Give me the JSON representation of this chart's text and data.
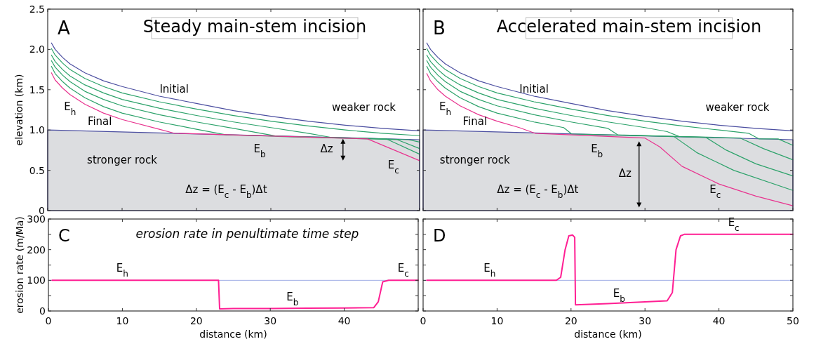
{
  "chart_data": [
    {
      "type": "line",
      "title": "Steady main-stem incision",
      "ylabel": "elevation (km)",
      "xlim": [
        0,
        50
      ],
      "ylim": [
        0,
        2.5
      ],
      "xticks": [
        {
          "value": 0,
          "label": null
        },
        {
          "value": 10,
          "label": null
        },
        {
          "value": 20,
          "label": null
        },
        {
          "value": 30,
          "label": null
        },
        {
          "value": 40,
          "label": null
        },
        {
          "value": 50,
          "label": null
        }
      ],
      "yticks": [
        {
          "value": 0,
          "label": "0"
        },
        0.5,
        {
          "value": 1,
          "label": "1.0"
        },
        1.5,
        {
          "value": 2,
          "label": "2.0"
        },
        2.5
      ],
      "tick_labels": "y",
      "grid": false,
      "series": [
        {
          "color": "#4b4ea0",
          "x": [
            0.5,
            1,
            2,
            3,
            5,
            7.5,
            10,
            15,
            20,
            25,
            30,
            35,
            40,
            45,
            50
          ],
          "values": [
            2.08,
            2.0,
            1.9,
            1.82,
            1.71,
            1.61,
            1.54,
            1.42,
            1.33,
            1.24,
            1.17,
            1.11,
            1.06,
            1.02,
            0.99
          ]
        },
        {
          "color": "#2ca26a",
          "x": [
            0.5,
            1,
            2,
            3,
            5,
            7.5,
            10,
            15,
            20,
            25,
            30,
            35,
            40,
            45,
            50
          ],
          "values": [
            2.01,
            1.93,
            1.83,
            1.75,
            1.64,
            1.54,
            1.46,
            1.35,
            1.26,
            1.18,
            1.11,
            1.05,
            1.0,
            0.96,
            0.93
          ]
        },
        {
          "color": "#2ca26a",
          "x": [
            0.5,
            1,
            2,
            3,
            5,
            7.5,
            10,
            15,
            20,
            25,
            30,
            35,
            38,
            48.5,
            50
          ],
          "values": [
            1.93,
            1.85,
            1.75,
            1.67,
            1.56,
            1.46,
            1.38,
            1.27,
            1.18,
            1.1,
            1.03,
            0.96,
            0.91,
            0.88,
            0.85
          ]
        },
        {
          "color": "#2ca26a",
          "x": [
            0.5,
            1,
            2,
            3,
            5,
            7.5,
            10,
            15,
            20,
            25,
            31,
            47,
            50
          ],
          "values": [
            1.86,
            1.78,
            1.68,
            1.6,
            1.48,
            1.38,
            1.3,
            1.19,
            1.1,
            1.02,
            0.92,
            0.88,
            0.77
          ]
        },
        {
          "color": "#2ca26a",
          "x": [
            0.5,
            1,
            2,
            3,
            5,
            7.5,
            10,
            15,
            20,
            24,
            45.5,
            50
          ],
          "values": [
            1.79,
            1.7,
            1.6,
            1.52,
            1.4,
            1.29,
            1.21,
            1.1,
            1.01,
            0.94,
            0.89,
            0.7
          ]
        },
        {
          "color": "#e8338f",
          "x": [
            0.5,
            1,
            2,
            3,
            5,
            7.5,
            10,
            15,
            17,
            43,
            50
          ],
          "values": [
            1.71,
            1.62,
            1.52,
            1.44,
            1.32,
            1.21,
            1.13,
            1.01,
            0.96,
            0.89,
            0.62
          ]
        },
        {
          "type": "area",
          "color": "#dcdde0",
          "x": [
            0,
            50
          ],
          "values": [
            1.0,
            0.88
          ]
        }
      ],
      "annotations": [
        "A",
        "Initial",
        "Final",
        "E$_{h}$",
        "weaker rock",
        "stronger rock",
        "E$_{b}$",
        "Δz",
        "E$_{c}$",
        "Δz = (E$_{c}$ - E$_{b}$)Δt"
      ]
    },
    {
      "type": "line",
      "title": "Accelerated main-stem incision",
      "xlim": [
        0,
        50
      ],
      "ylim": [
        0,
        2.5
      ],
      "xticks": [
        {
          "value": 0,
          "label": null
        },
        {
          "value": 10,
          "label": null
        },
        {
          "value": 20,
          "label": null
        },
        {
          "value": 30,
          "label": null
        },
        {
          "value": 40,
          "label": null
        },
        {
          "value": 50,
          "label": null
        }
      ],
      "yticks": [
        {
          "value": 0,
          "label": null
        },
        {
          "value": 0.5,
          "label": null
        },
        {
          "value": 1.0,
          "label": null
        },
        {
          "value": 1.5,
          "label": null
        },
        {
          "value": 2.0,
          "label": null
        },
        {
          "value": 2.5,
          "label": null
        }
      ],
      "tick_labels": false,
      "grid": false,
      "series": [
        {
          "color": "#4b4ea0",
          "x": [
            0.5,
            1,
            2,
            3,
            5,
            7.5,
            10,
            15,
            20,
            25,
            30,
            35,
            40,
            45,
            50
          ],
          "values": [
            2.08,
            2.0,
            1.9,
            1.82,
            1.71,
            1.61,
            1.54,
            1.42,
            1.33,
            1.24,
            1.17,
            1.11,
            1.06,
            1.02,
            0.99
          ]
        },
        {
          "color": "#2ca26a",
          "x": [
            0.5,
            1,
            2,
            3,
            5,
            7.5,
            10,
            15,
            20,
            25,
            30,
            35,
            40,
            44,
            45.4,
            48,
            50
          ],
          "values": [
            2.01,
            1.93,
            1.83,
            1.75,
            1.64,
            1.54,
            1.46,
            1.35,
            1.26,
            1.18,
            1.11,
            1.05,
            1.0,
            0.96,
            0.89,
            0.89,
            0.81
          ]
        },
        {
          "color": "#2ca26a",
          "x": [
            0.5,
            1,
            2,
            3,
            5,
            7.5,
            10,
            15,
            20,
            25,
            30,
            33,
            34.6,
            42.9,
            46,
            50
          ],
          "values": [
            1.93,
            1.85,
            1.75,
            1.67,
            1.56,
            1.46,
            1.38,
            1.27,
            1.18,
            1.1,
            1.03,
            0.98,
            0.92,
            0.9,
            0.77,
            0.63
          ]
        },
        {
          "color": "#2ca26a",
          "x": [
            0.5,
            1,
            2,
            3,
            5,
            7.5,
            10,
            15,
            20,
            25,
            26.3,
            38.2,
            41,
            45,
            50
          ],
          "values": [
            1.86,
            1.78,
            1.68,
            1.6,
            1.48,
            1.38,
            1.3,
            1.19,
            1.1,
            1.02,
            0.94,
            0.91,
            0.75,
            0.58,
            0.43
          ]
        },
        {
          "color": "#2ca26a",
          "x": [
            0.5,
            1,
            2,
            3,
            5,
            7.5,
            10,
            15,
            19,
            20.1,
            33.9,
            37,
            42,
            50
          ],
          "values": [
            1.79,
            1.7,
            1.6,
            1.52,
            1.4,
            1.29,
            1.21,
            1.1,
            1.03,
            0.95,
            0.92,
            0.72,
            0.5,
            0.25
          ]
        },
        {
          "color": "#e8338f",
          "x": [
            0.5,
            1,
            2,
            3,
            5,
            7.5,
            10,
            13,
            15.1,
            30,
            32,
            35,
            40,
            45,
            50
          ],
          "values": [
            1.7,
            1.61,
            1.5,
            1.42,
            1.3,
            1.19,
            1.11,
            1.03,
            0.96,
            0.9,
            0.79,
            0.55,
            0.33,
            0.18,
            0.06
          ]
        },
        {
          "type": "area",
          "color": "#dcdde0",
          "x": [
            0,
            50
          ],
          "values": [
            1.0,
            0.88
          ]
        }
      ],
      "annotations": [
        "B",
        "Initial",
        "Final",
        "E$_{h}$",
        "weaker rock",
        "stronger rock",
        "E$_{b}$",
        "Δz",
        "E$_{c}$",
        "Δz = (E$_{c}$ - E$_{b}$)Δt"
      ]
    },
    {
      "type": "line",
      "title": "erosion rate in penultimate time step",
      "xlabel": "distance (km)",
      "ylabel": "erosion rate (m/Ma)",
      "xlim": [
        0,
        50
      ],
      "ylim": [
        0,
        300
      ],
      "xticks": [
        0,
        10,
        20,
        30,
        40,
        {
          "value": 50,
          "label": null
        }
      ],
      "yticks": [
        0,
        {
          "value": 50,
          "label": null
        },
        100,
        {
          "value": 150,
          "label": null
        },
        200,
        {
          "value": 250,
          "label": null
        },
        300
      ],
      "grid": false,
      "ref_lines": [
        {
          "axis": "y",
          "value": 100,
          "color": "#a0aee6"
        }
      ],
      "series": [
        {
          "color": "#ff1f93",
          "x": [
            0.5,
            23,
            23.15,
            25,
            30,
            35,
            40,
            44,
            44.6,
            45.2,
            46,
            50
          ],
          "values": [
            100,
            100,
            7,
            8,
            8,
            9,
            10,
            11,
            30,
            95,
            100,
            100
          ]
        }
      ],
      "annotations": [
        "C",
        "E$_{h}$",
        "E$_{b}$",
        "E$_{c}$"
      ]
    },
    {
      "type": "line",
      "xlabel": "distance (km)",
      "xlim": [
        0,
        50
      ],
      "ylim": [
        0,
        300
      ],
      "xticks": [
        0,
        10,
        20,
        30,
        40,
        50
      ],
      "yticks": [
        {
          "value": 0,
          "label": null
        },
        {
          "value": 50,
          "label": null
        },
        {
          "value": 100,
          "label": null
        },
        {
          "value": 150,
          "label": null
        },
        {
          "value": 200,
          "label": null
        },
        {
          "value": 250,
          "label": null
        },
        {
          "value": 300,
          "label": null
        }
      ],
      "tick_labels": "x",
      "grid": false,
      "ref_lines": [
        {
          "axis": "y",
          "value": 100,
          "color": "#a0aee6"
        }
      ],
      "series": [
        {
          "color": "#ff1f93",
          "x": [
            0.5,
            18,
            18.6,
            19.2,
            19.7,
            20.2,
            20.5,
            20.6,
            25,
            30,
            33,
            33.7,
            34.2,
            34.8,
            35.3,
            50
          ],
          "values": [
            100,
            100,
            110,
            200,
            245,
            248,
            240,
            20,
            24,
            30,
            33,
            60,
            200,
            245,
            250,
            250
          ]
        }
      ],
      "annotations": [
        "D",
        "E$_{h}$",
        "E$_{b}$",
        "E$_{c}$"
      ]
    }
  ]
}
